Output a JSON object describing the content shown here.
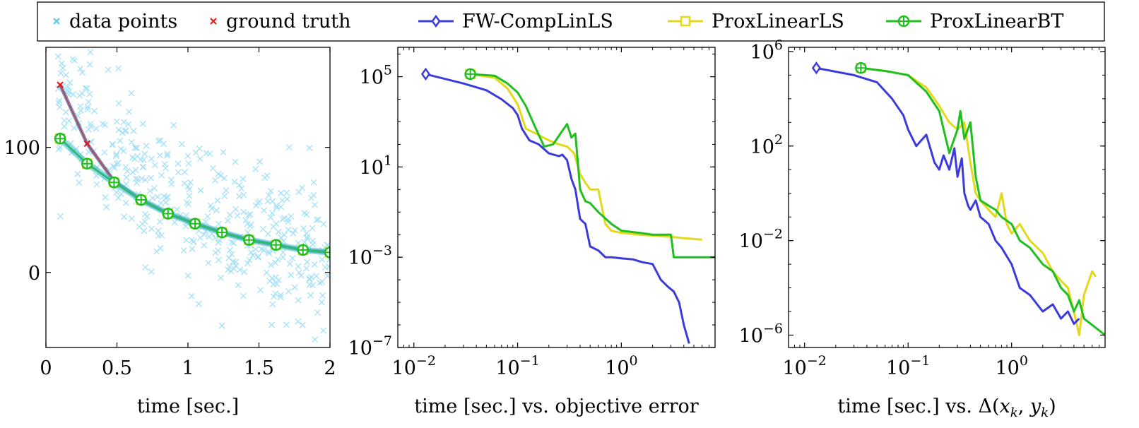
{
  "legend": {
    "items": [
      {
        "label": "data points",
        "color": "#5bc8f0",
        "marker": "x"
      },
      {
        "label": "ground truth",
        "color": "#e31a1c",
        "marker": "x"
      },
      {
        "label": "FW-CompLinLS",
        "color": "#3b3bdc",
        "marker": "diamond"
      },
      {
        "label": "ProxLinearLS",
        "color": "#e3d81a",
        "marker": "square"
      },
      {
        "label": "ProxLinearBT",
        "color": "#1fbf1f",
        "marker": "circle-plus"
      }
    ]
  },
  "chart_data": [
    {
      "type": "scatter",
      "xlabel": "time [sec.]",
      "ylabel": "",
      "xlim": [
        0,
        2
      ],
      "ylim": [
        -60,
        180
      ],
      "xticks": [
        {
          "v": 0,
          "label": "0"
        },
        {
          "v": 0.5,
          "label": "0.5"
        },
        {
          "v": 1,
          "label": "1"
        },
        {
          "v": 1.5,
          "label": "1.5"
        },
        {
          "v": 2,
          "label": "2"
        }
      ],
      "yticks": [
        {
          "v": 0,
          "label": "0"
        },
        {
          "v": 100,
          "label": "100"
        }
      ],
      "grid": false,
      "scatter_model": {
        "amplitude": 160,
        "rate": 1.15,
        "x_start": 0.08,
        "x_end": 2.0,
        "count": 420,
        "noise": 28
      },
      "series": [
        {
          "name": "ground truth",
          "color": "#e31a1c",
          "x": [
            0.1,
            0.29,
            0.48,
            0.67,
            0.86,
            1.05,
            1.24,
            1.43,
            1.62,
            1.81,
            2.0
          ],
          "y": [
            150,
            103,
            73,
            58,
            47,
            39,
            32,
            26,
            22,
            18,
            16
          ]
        },
        {
          "name": "ProxLinearLS",
          "color": "#e3d81a",
          "x": [
            0.1,
            0.29,
            0.48,
            0.67,
            0.86,
            1.05,
            1.24,
            1.43,
            1.62,
            1.81,
            2.0
          ],
          "y": [
            107,
            87,
            72,
            58,
            47,
            39,
            32,
            26,
            22,
            18,
            16
          ]
        },
        {
          "name": "ProxLinearBT",
          "color": "#1fbf1f",
          "x": [
            0.1,
            0.29,
            0.48,
            0.67,
            0.86,
            1.05,
            1.24,
            1.43,
            1.62,
            1.81,
            2.0
          ],
          "y": [
            107,
            87,
            72,
            58,
            47,
            39,
            32,
            26,
            22,
            18,
            16
          ]
        }
      ]
    },
    {
      "type": "line",
      "xlabel": "time [sec.]  vs.  objective error",
      "ylabel": "",
      "xscale": "log",
      "yscale": "log",
      "xlim": [
        0.007,
        8
      ],
      "ylim": [
        1e-07,
        2000000.0
      ],
      "xticks": [
        {
          "v": 0.01,
          "base": "10",
          "exp": "−2"
        },
        {
          "v": 0.1,
          "base": "10",
          "exp": "−1"
        },
        {
          "v": 1,
          "base": "10",
          "exp": "0"
        }
      ],
      "yticks": [
        {
          "v": 100000.0,
          "base": "10",
          "exp": "5"
        },
        {
          "v": 10,
          "base": "10",
          "exp": "1"
        },
        {
          "v": 0.001,
          "base": "10",
          "exp": "−3"
        },
        {
          "v": 1e-07,
          "base": "10",
          "exp": "−7"
        }
      ],
      "grid": false,
      "series": [
        {
          "name": "FW-CompLinLS",
          "color": "#3b3bdc",
          "x": [
            0.013,
            0.03,
            0.05,
            0.07,
            0.09,
            0.1,
            0.11,
            0.13,
            0.16,
            0.2,
            0.25,
            0.27,
            0.3,
            0.33,
            0.36,
            0.4,
            0.42,
            0.45,
            0.5,
            0.6,
            0.7,
            0.8,
            1.0,
            1.3,
            1.6,
            2.0,
            2.4,
            2.8,
            3.2,
            3.6,
            4.0,
            4.5
          ],
          "y": [
            130000.0,
            50000.0,
            25000.0,
            10000.0,
            4000.0,
            2000.0,
            500,
            150,
            100,
            40,
            30,
            35,
            20,
            3,
            1,
            0.05,
            0.04,
            0.03,
            0.003,
            0.002,
            0.001,
            0.001,
            0.0009,
            0.0008,
            0.0006,
            0.0005,
            0.0001,
            5e-05,
            3e-05,
            1e-05,
            1e-06,
            1.5e-07
          ]
        },
        {
          "name": "ProxLinearLS",
          "color": "#e3d81a",
          "x": [
            0.035,
            0.06,
            0.08,
            0.1,
            0.12,
            0.15,
            0.2,
            0.25,
            0.3,
            0.35,
            0.4,
            0.45,
            0.5,
            0.6,
            0.7,
            0.8,
            1.0,
            1.5,
            2.0,
            3.0,
            4.0,
            6.0
          ],
          "y": [
            130000.0,
            90000.0,
            30000.0,
            6000.0,
            500,
            300,
            150,
            100,
            80,
            40,
            5,
            2,
            1,
            1,
            0.03,
            0.015,
            0.012,
            0.01,
            0.009,
            0.008,
            0.007,
            0.006
          ]
        },
        {
          "name": "ProxLinearBT",
          "color": "#1fbf1f",
          "x": [
            0.035,
            0.06,
            0.08,
            0.1,
            0.12,
            0.15,
            0.18,
            0.22,
            0.27,
            0.3,
            0.33,
            0.36,
            0.4,
            0.45,
            0.5,
            0.6,
            0.8,
            1.0,
            1.5,
            2.0,
            3.0,
            3.2,
            5.0,
            8.0
          ],
          "y": [
            130000.0,
            110000.0,
            50000.0,
            20000.0,
            5000.0,
            500,
            80,
            100,
            400,
            800,
            200,
            300,
            1,
            0.3,
            0.25,
            0.1,
            0.03,
            0.015,
            0.012,
            0.01,
            0.01,
            0.001,
            0.001,
            0.001
          ]
        }
      ]
    },
    {
      "type": "line",
      "xlabel": "time [sec.]  vs.  Δ(x_k, y_k)",
      "ylabel": "",
      "xscale": "log",
      "yscale": "log",
      "xlim": [
        0.007,
        8
      ],
      "ylim": [
        3e-07,
        1500000.0
      ],
      "xticks": [
        {
          "v": 0.01,
          "base": "10",
          "exp": "−2"
        },
        {
          "v": 0.1,
          "base": "10",
          "exp": "−1"
        },
        {
          "v": 1,
          "base": "10",
          "exp": "0"
        }
      ],
      "yticks": [
        {
          "v": 1000000.0,
          "base": "10",
          "exp": "6"
        },
        {
          "v": 100,
          "base": "10",
          "exp": "2"
        },
        {
          "v": 0.01,
          "base": "10",
          "exp": "−2"
        },
        {
          "v": 1e-06,
          "base": "10",
          "exp": "−6"
        }
      ],
      "grid": false,
      "series": [
        {
          "name": "FW-CompLinLS",
          "color": "#3b3bdc",
          "x": [
            0.013,
            0.03,
            0.05,
            0.07,
            0.09,
            0.1,
            0.12,
            0.15,
            0.18,
            0.2,
            0.22,
            0.25,
            0.28,
            0.3,
            0.33,
            0.35,
            0.38,
            0.4,
            0.45,
            0.5,
            0.6,
            0.7,
            0.8,
            1.0,
            1.2,
            1.5,
            2.0,
            2.5,
            3.0,
            3.5,
            4.0,
            4.5
          ],
          "y": [
            200000.0,
            100000.0,
            50000.0,
            10000.0,
            2000.0,
            500,
            100,
            300,
            20,
            10,
            40,
            10,
            80,
            5,
            30,
            1,
            0.3,
            0.2,
            0.5,
            0.1,
            0.05,
            0.01,
            0.005,
            0.001,
            0.0001,
            5e-05,
            1e-05,
            2e-05,
            5e-06,
            1e-05,
            3e-06,
            5e-06
          ]
        },
        {
          "name": "ProxLinearLS",
          "color": "#e3d81a",
          "x": [
            0.035,
            0.06,
            0.1,
            0.15,
            0.2,
            0.25,
            0.3,
            0.35,
            0.4,
            0.45,
            0.5,
            0.6,
            0.7,
            0.8,
            0.9,
            1.0,
            1.2,
            1.5,
            2.0,
            2.5,
            3.0,
            3.5,
            4.0,
            4.5,
            5.0,
            6.0,
            6.5
          ],
          "y": [
            200000.0,
            150000.0,
            100000.0,
            30000.0,
            5000.0,
            1000.0,
            500,
            1000.0,
            20,
            1,
            0.5,
            0.2,
            0.1,
            1,
            0.05,
            0.02,
            0.05,
            0.01,
            0.003,
            0.0005,
            0.0002,
            0.0001,
            1e-05,
            1e-06,
            5e-05,
            0.0005,
            0.0003
          ]
        },
        {
          "name": "ProxLinearBT",
          "color": "#1fbf1f",
          "x": [
            0.035,
            0.06,
            0.1,
            0.15,
            0.2,
            0.25,
            0.3,
            0.32,
            0.35,
            0.4,
            0.45,
            0.5,
            0.6,
            0.7,
            0.8,
            1.0,
            1.2,
            1.5,
            2.0,
            2.5,
            3.0,
            3.5,
            4.0,
            4.5,
            5.0,
            8.0
          ],
          "y": [
            200000.0,
            150000.0,
            100000.0,
            20000.0,
            3000.0,
            50,
            500,
            3000.0,
            200,
            1000.0,
            5,
            0.5,
            0.3,
            0.2,
            0.1,
            0.05,
            0.01,
            0.005,
            0.001,
            0.0005,
            0.0001,
            5e-05,
            1e-05,
            3e-05,
            5e-06,
            1e-06
          ]
        }
      ]
    }
  ]
}
